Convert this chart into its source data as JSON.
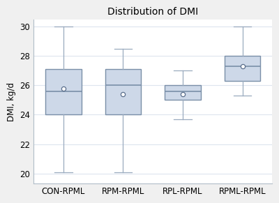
{
  "title": "Distribution of DMI",
  "ylabel": "DMI, kg/d",
  "categories": [
    "CON-RPML",
    "RPM-RPML",
    "RPL-RPML",
    "RPML-RPML"
  ],
  "boxes": [
    {
      "whislo": 20.1,
      "q1": 24.0,
      "med": 25.6,
      "q3": 27.1,
      "whishi": 30.0,
      "mean": 25.8
    },
    {
      "whislo": 20.1,
      "q1": 24.0,
      "med": 26.0,
      "q3": 27.1,
      "whishi": 28.5,
      "mean": 25.4
    },
    {
      "whislo": 23.7,
      "q1": 25.0,
      "med": 25.6,
      "q3": 26.0,
      "whishi": 27.0,
      "mean": 25.4
    },
    {
      "whislo": 25.3,
      "q1": 26.3,
      "med": 27.3,
      "q3": 28.0,
      "whishi": 30.0,
      "mean": 27.3
    }
  ],
  "ylim": [
    19.3,
    30.5
  ],
  "yticks": [
    20,
    22,
    24,
    26,
    28,
    30
  ],
  "box_facecolor": "#cdd8e8",
  "box_edgecolor": "#7a8fa8",
  "median_color": "#7a8fa8",
  "whisker_color": "#9aabbf",
  "cap_color": "#9aabbf",
  "mean_marker": "o",
  "mean_color": "white",
  "mean_edgecolor": "#5a6e8c",
  "mean_size": 4.5,
  "grid_color": "#dde5ee",
  "bg_color": "#ffffff",
  "fig_bg_color": "#f0f0f0",
  "title_fontsize": 10,
  "label_fontsize": 8.5,
  "tick_fontsize": 8.5,
  "box_width": 0.6
}
